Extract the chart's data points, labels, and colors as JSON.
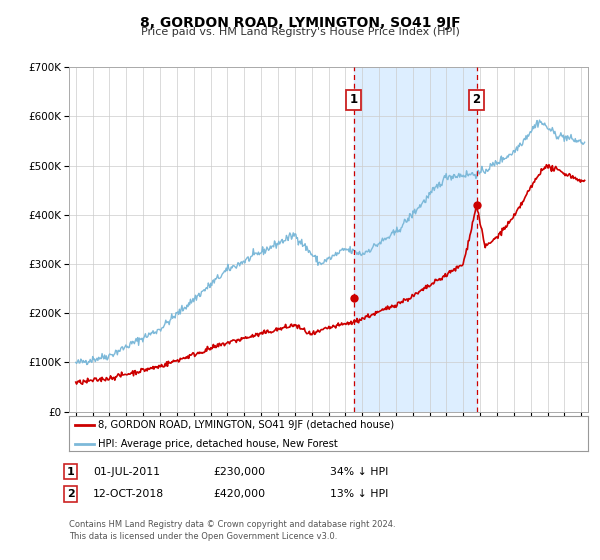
{
  "title": "8, GORDON ROAD, LYMINGTON, SO41 9JF",
  "subtitle": "Price paid vs. HM Land Registry's House Price Index (HPI)",
  "ylim": [
    0,
    700000
  ],
  "yticks": [
    0,
    100000,
    200000,
    300000,
    400000,
    500000,
    600000,
    700000
  ],
  "ytick_labels": [
    "£0",
    "£100K",
    "£200K",
    "£300K",
    "£400K",
    "£500K",
    "£600K",
    "£700K"
  ],
  "xlim_start": 1994.6,
  "xlim_end": 2025.4,
  "hpi_color": "#7db9d9",
  "price_color": "#cc0000",
  "sale1_x": 2011.5,
  "sale1_y": 230000,
  "sale2_x": 2018.79,
  "sale2_y": 420000,
  "sale1_label": "1",
  "sale2_label": "2",
  "sale1_date": "01-JUL-2011",
  "sale1_price": "£230,000",
  "sale1_hpi": "34% ↓ HPI",
  "sale2_date": "12-OCT-2018",
  "sale2_price": "£420,000",
  "sale2_hpi": "13% ↓ HPI",
  "legend_line1": "8, GORDON ROAD, LYMINGTON, SO41 9JF (detached house)",
  "legend_line2": "HPI: Average price, detached house, New Forest",
  "footer1": "Contains HM Land Registry data © Crown copyright and database right 2024.",
  "footer2": "This data is licensed under the Open Government Licence v3.0.",
  "bg_color": "#ffffff",
  "plot_bg_color": "#ffffff",
  "shade_color": "#ddeeff",
  "grid_color": "#cccccc"
}
